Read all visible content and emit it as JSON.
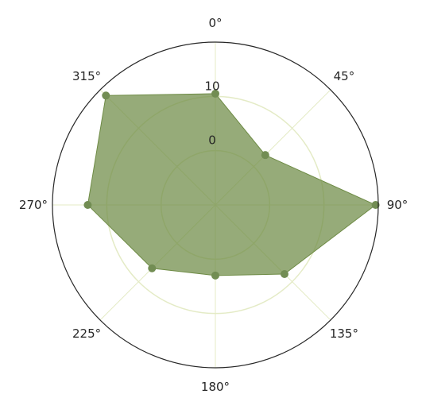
{
  "chart_data": {
    "type": "radar",
    "theta_unit": "degrees",
    "theta_zero": "top",
    "theta_direction": "clockwise",
    "angle_labels": [
      "0°",
      "45°",
      "90°",
      "135°",
      "180°",
      "225°",
      "270°",
      "315°"
    ],
    "radial_tick_labels": [
      "0",
      "10"
    ],
    "radial_ticks": [
      0,
      10
    ],
    "rlim": [
      -10,
      20
    ],
    "grid": true,
    "series": [
      {
        "theta": [
          0,
          45,
          90,
          135,
          180,
          225,
          270,
          315
        ],
        "r": [
          10.5,
          3.0,
          19.5,
          8.0,
          3.0,
          6.5,
          13.5,
          18.5
        ]
      }
    ],
    "colors": {
      "fill": "#6e8b45",
      "marker": "#728d53",
      "grid": "#e4ebc6",
      "spine": "#262626"
    }
  }
}
